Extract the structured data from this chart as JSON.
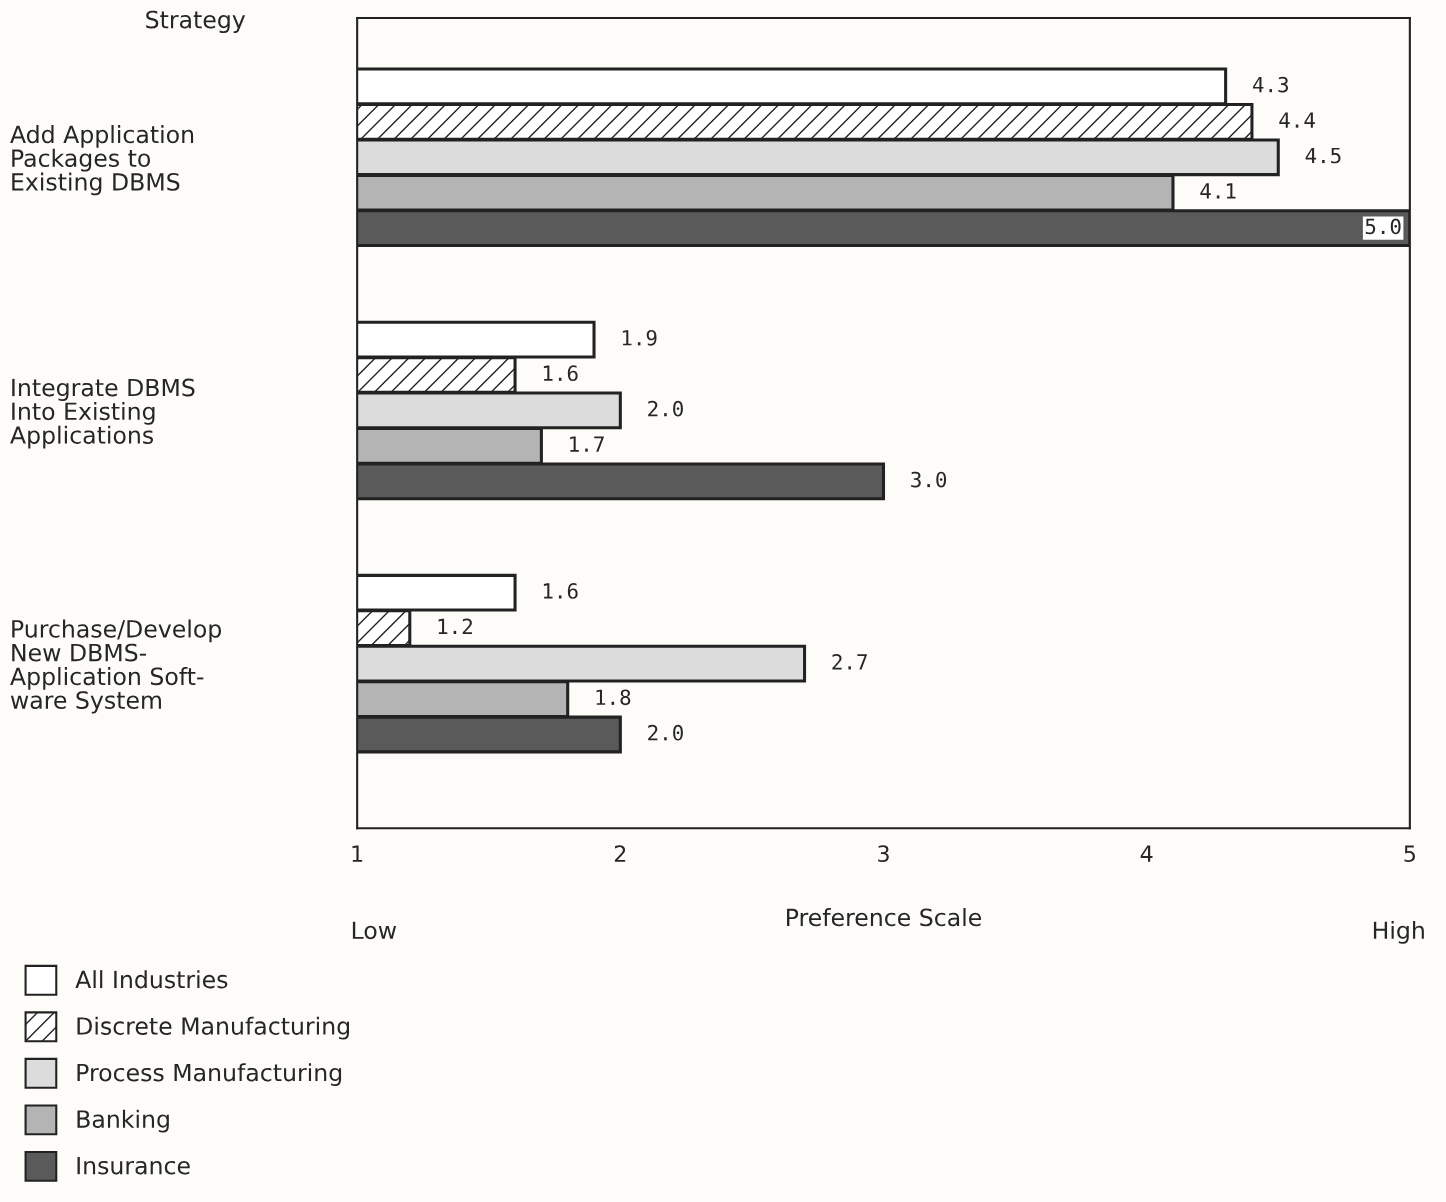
{
  "chart_data": {
    "type": "bar",
    "orientation": "horizontal",
    "ylabel": "Strategy",
    "xlabel": "Preference Scale",
    "categories": [
      "Add Application\nPackages to\nExisting DBMS",
      "Integrate DBMS\nInto Existing\nApplications",
      "Purchase/Develop\nNew DBMS-\nApplication Soft-\nware System"
    ],
    "series": [
      {
        "name": "All Industries",
        "color": "#ffffff",
        "values": [
          4.3,
          1.9,
          1.6
        ],
        "value_labels": [
          "4.3",
          "1.9",
          "1.6"
        ]
      },
      {
        "name": "Discrete Manufacturing",
        "color": "#222222",
        "values": [
          4.4,
          1.6,
          1.2
        ],
        "value_labels": [
          "4.4",
          "1.6",
          "1.2"
        ]
      },
      {
        "name": "Process Manufacturing",
        "color": "#dcdcdc",
        "values": [
          4.5,
          2.0,
          2.7
        ],
        "value_labels": [
          "4.5",
          "2.0",
          "2.7"
        ]
      },
      {
        "name": "Banking",
        "color": "#b4b4b4",
        "values": [
          4.1,
          1.7,
          1.8
        ],
        "value_labels": [
          "4.1",
          "1.7",
          "1.8"
        ]
      },
      {
        "name": "Insurance",
        "color": "#5a5a5a",
        "values": [
          5.0,
          3.0,
          2.0
        ],
        "value_labels": [
          "5.0",
          "3.0",
          "2.0"
        ]
      }
    ],
    "xlim": [
      1,
      5
    ],
    "xticks": [
      1,
      2,
      3,
      4,
      5
    ],
    "annotations": [
      "Low",
      "High"
    ],
    "legend": "bottom left",
    "grid": false
  }
}
